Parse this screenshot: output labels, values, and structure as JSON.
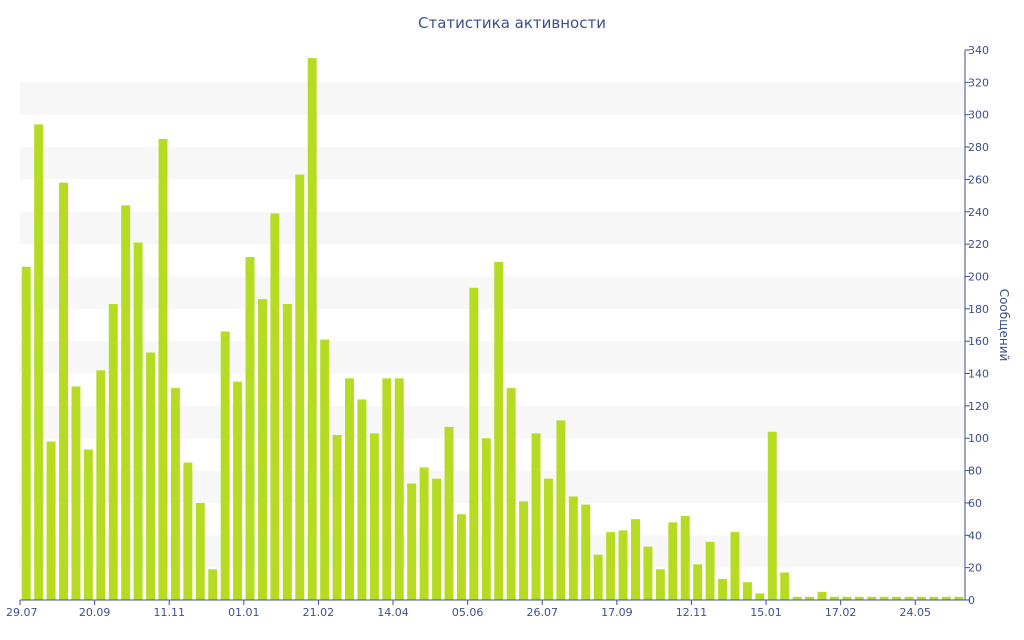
{
  "chart_data": {
    "type": "bar",
    "title": "Статистика активности",
    "xlabel": "",
    "ylabel": "Сообщений",
    "ylim": [
      0,
      340
    ],
    "y_axis_side": "right",
    "y_ticks": [
      0,
      20,
      40,
      60,
      80,
      100,
      120,
      140,
      160,
      180,
      200,
      220,
      240,
      260,
      280,
      300,
      320,
      340
    ],
    "x_tick_labels": [
      {
        "index": 0,
        "label": "29.07"
      },
      {
        "index": 6,
        "label": "20.09"
      },
      {
        "index": 12,
        "label": "11.11"
      },
      {
        "index": 18,
        "label": "01.01"
      },
      {
        "index": 24,
        "label": "21.02"
      },
      {
        "index": 30,
        "label": "14.04"
      },
      {
        "index": 36,
        "label": "05.06"
      },
      {
        "index": 42,
        "label": "26.07"
      },
      {
        "index": 48,
        "label": "17.09"
      },
      {
        "index": 54,
        "label": "12.11"
      },
      {
        "index": 60,
        "label": "15.01"
      },
      {
        "index": 66,
        "label": "17.02"
      },
      {
        "index": 72,
        "label": "24.05"
      }
    ],
    "values": [
      206,
      294,
      98,
      258,
      132,
      93,
      142,
      183,
      244,
      221,
      153,
      285,
      131,
      85,
      60,
      19,
      166,
      135,
      212,
      186,
      239,
      183,
      263,
      335,
      161,
      102,
      137,
      124,
      103,
      137,
      137,
      72,
      82,
      75,
      107,
      53,
      193,
      100,
      209,
      131,
      61,
      103,
      75,
      111,
      64,
      59,
      28,
      42,
      43,
      50,
      33,
      19,
      48,
      52,
      22,
      36,
      13,
      42,
      11,
      4,
      104,
      17,
      2,
      2,
      5,
      2,
      2,
      2,
      2,
      2,
      2,
      2,
      2,
      2,
      2,
      2
    ],
    "bar_color": "#b5dc22",
    "grid": "horizontal bands",
    "band_color": "#f7f7f7",
    "text_color": "#3d4f8a"
  }
}
